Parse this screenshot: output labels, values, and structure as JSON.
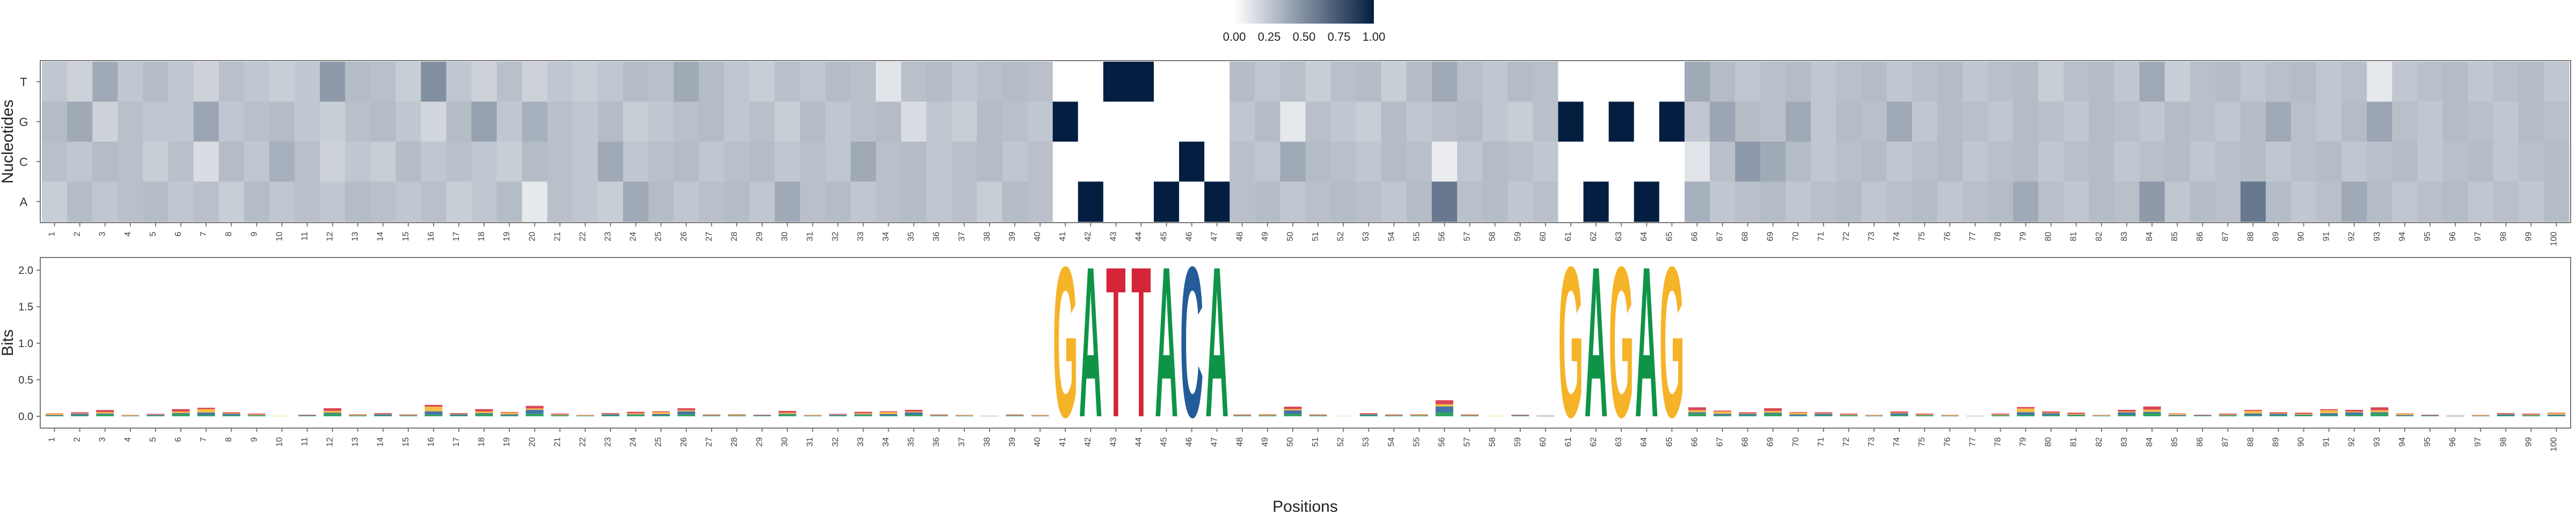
{
  "chart_data": [
    {
      "type": "heatmap",
      "title": "",
      "xlabel": "",
      "ylabel": "Nucleotides",
      "rows": [
        "T",
        "G",
        "C",
        "A"
      ],
      "columns": [
        "1",
        "2",
        "3",
        "4",
        "5",
        "6",
        "7",
        "8",
        "9",
        "10",
        "11",
        "12",
        "13",
        "14",
        "15",
        "16",
        "17",
        "18",
        "19",
        "20",
        "21",
        "22",
        "23",
        "24",
        "25",
        "26",
        "27",
        "28",
        "29",
        "30",
        "31",
        "32",
        "33",
        "34",
        "35",
        "36",
        "37",
        "38",
        "39",
        "40",
        "41",
        "42",
        "43",
        "44",
        "45",
        "46",
        "47",
        "48",
        "49",
        "50",
        "51",
        "52",
        "53",
        "54",
        "55",
        "56",
        "57",
        "58",
        "59",
        "60",
        "61",
        "62",
        "63",
        "64",
        "65",
        "66",
        "67",
        "68",
        "69",
        "70",
        "71",
        "72",
        "73",
        "74",
        "75",
        "76",
        "77",
        "78",
        "79",
        "80",
        "81",
        "82",
        "83",
        "84",
        "85",
        "86",
        "87",
        "88",
        "89",
        "90",
        "91",
        "92",
        "93",
        "94",
        "95",
        "96",
        "97",
        "98",
        "99",
        "100"
      ],
      "values": {
        "T": [
          0.25,
          0.2,
          0.38,
          0.25,
          0.3,
          0.25,
          0.2,
          0.28,
          0.25,
          0.22,
          0.25,
          0.45,
          0.3,
          0.28,
          0.22,
          0.5,
          0.25,
          0.2,
          0.28,
          0.2,
          0.25,
          0.22,
          0.25,
          0.3,
          0.28,
          0.38,
          0.3,
          0.25,
          0.22,
          0.28,
          0.25,
          0.3,
          0.28,
          0.12,
          0.28,
          0.3,
          0.25,
          0.28,
          0.3,
          0.28,
          0,
          0,
          1,
          1,
          0,
          0,
          0,
          0.3,
          0.25,
          0.28,
          0.22,
          0.28,
          0.3,
          0.22,
          0.3,
          0.38,
          0.28,
          0.25,
          0.3,
          0.28,
          0,
          0,
          0,
          0,
          0,
          0.38,
          0.3,
          0.25,
          0.28,
          0.3,
          0.25,
          0.28,
          0.3,
          0.25,
          0.28,
          0.3,
          0.25,
          0.28,
          0.3,
          0.22,
          0.28,
          0.3,
          0.25,
          0.38,
          0.22,
          0.28,
          0.3,
          0.25,
          0.28,
          0.3,
          0.25,
          0.28,
          0.1,
          0.25,
          0.28,
          0.3,
          0.25,
          0.28,
          0.3,
          0.25
        ],
        "G": [
          0.3,
          0.38,
          0.2,
          0.28,
          0.25,
          0.25,
          0.4,
          0.25,
          0.28,
          0.3,
          0.25,
          0.22,
          0.28,
          0.3,
          0.25,
          0.18,
          0.3,
          0.42,
          0.25,
          0.35,
          0.28,
          0.25,
          0.3,
          0.22,
          0.25,
          0.28,
          0.3,
          0.25,
          0.28,
          0.22,
          0.3,
          0.25,
          0.28,
          0.3,
          0.15,
          0.25,
          0.22,
          0.3,
          0.28,
          0.25,
          1,
          0,
          0,
          0,
          0,
          0,
          0,
          0.25,
          0.3,
          0.1,
          0.28,
          0.25,
          0.22,
          0.3,
          0.25,
          0.28,
          0.3,
          0.25,
          0.22,
          0.28,
          1,
          0,
          1,
          0,
          1,
          0.25,
          0.4,
          0.3,
          0.28,
          0.38,
          0.25,
          0.3,
          0.28,
          0.38,
          0.25,
          0.3,
          0.28,
          0.25,
          0.3,
          0.28,
          0.25,
          0.3,
          0.28,
          0.25,
          0.3,
          0.28,
          0.25,
          0.3,
          0.38,
          0.28,
          0.25,
          0.3,
          0.4,
          0.28,
          0.25,
          0.3,
          0.28,
          0.25,
          0.3,
          0.28
        ],
        "C": [
          0.28,
          0.25,
          0.3,
          0.28,
          0.22,
          0.28,
          0.15,
          0.3,
          0.25,
          0.35,
          0.28,
          0.2,
          0.25,
          0.22,
          0.3,
          0.25,
          0.28,
          0.25,
          0.22,
          0.3,
          0.28,
          0.25,
          0.38,
          0.25,
          0.28,
          0.3,
          0.25,
          0.28,
          0.3,
          0.25,
          0.28,
          0.25,
          0.38,
          0.28,
          0.3,
          0.25,
          0.28,
          0.3,
          0.25,
          0.28,
          0,
          0,
          0,
          0,
          0,
          1,
          0,
          0.28,
          0.25,
          0.38,
          0.3,
          0.28,
          0.25,
          0.3,
          0.28,
          0.08,
          0.25,
          0.3,
          0.28,
          0.25,
          0,
          0,
          0,
          0,
          0,
          0.12,
          0.28,
          0.45,
          0.38,
          0.3,
          0.25,
          0.28,
          0.3,
          0.25,
          0.28,
          0.3,
          0.25,
          0.28,
          0.3,
          0.25,
          0.28,
          0.3,
          0.25,
          0.28,
          0.3,
          0.25,
          0.28,
          0.3,
          0.25,
          0.28,
          0.3,
          0.25,
          0.28,
          0.3,
          0.25,
          0.28,
          0.3,
          0.25,
          0.28,
          0.3
        ],
        "A": [
          0.22,
          0.3,
          0.25,
          0.28,
          0.3,
          0.25,
          0.28,
          0.22,
          0.3,
          0.25,
          0.28,
          0.25,
          0.3,
          0.28,
          0.25,
          0.28,
          0.22,
          0.25,
          0.3,
          0.1,
          0.28,
          0.25,
          0.22,
          0.38,
          0.3,
          0.25,
          0.28,
          0.3,
          0.25,
          0.38,
          0.28,
          0.3,
          0.25,
          0.28,
          0.3,
          0.25,
          0.28,
          0.22,
          0.3,
          0.28,
          0,
          1,
          0,
          0,
          1,
          0,
          1,
          0.28,
          0.3,
          0.25,
          0.28,
          0.3,
          0.28,
          0.25,
          0.3,
          0.6,
          0.28,
          0.3,
          0.25,
          0.28,
          0,
          1,
          0,
          1,
          0,
          0.35,
          0.25,
          0.28,
          0.3,
          0.25,
          0.28,
          0.3,
          0.25,
          0.28,
          0.3,
          0.25,
          0.28,
          0.3,
          0.38,
          0.28,
          0.25,
          0.3,
          0.28,
          0.45,
          0.25,
          0.3,
          0.28,
          0.6,
          0.3,
          0.25,
          0.28,
          0.38,
          0.3,
          0.25,
          0.28,
          0.3,
          0.25,
          0.28,
          0.25,
          0.3
        ]
      },
      "colorbar": {
        "min": 0,
        "max": 1,
        "ticks": [
          "0.00",
          "0.25",
          "0.50",
          "0.75",
          "1.00"
        ],
        "color_low": "#ffffff",
        "color_high": "#041e42"
      }
    },
    {
      "type": "sequence-logo",
      "title": "",
      "xlabel": "Positions",
      "ylabel": "Bits",
      "ylim": [
        0,
        2.1
      ],
      "yticks": [
        "0.0",
        "0.5",
        "1.0",
        "1.5",
        "2.0"
      ],
      "x": [
        "1",
        "2",
        "3",
        "4",
        "5",
        "6",
        "7",
        "8",
        "9",
        "10",
        "11",
        "12",
        "13",
        "14",
        "15",
        "16",
        "17",
        "18",
        "19",
        "20",
        "21",
        "22",
        "23",
        "24",
        "25",
        "26",
        "27",
        "28",
        "29",
        "30",
        "31",
        "32",
        "33",
        "34",
        "35",
        "36",
        "37",
        "38",
        "39",
        "40",
        "41",
        "42",
        "43",
        "44",
        "45",
        "46",
        "47",
        "48",
        "49",
        "50",
        "51",
        "52",
        "53",
        "54",
        "55",
        "56",
        "57",
        "58",
        "59",
        "60",
        "61",
        "62",
        "63",
        "64",
        "65",
        "66",
        "67",
        "68",
        "69",
        "70",
        "71",
        "72",
        "73",
        "74",
        "75",
        "76",
        "77",
        "78",
        "79",
        "80",
        "81",
        "82",
        "83",
        "84",
        "85",
        "86",
        "87",
        "88",
        "89",
        "90",
        "91",
        "92",
        "93",
        "94",
        "95",
        "96",
        "97",
        "98",
        "99",
        "100"
      ],
      "conserved": [
        {
          "position": 41,
          "letter": "G",
          "bits": 2.0
        },
        {
          "position": 42,
          "letter": "A",
          "bits": 2.0
        },
        {
          "position": 43,
          "letter": "T",
          "bits": 2.0
        },
        {
          "position": 44,
          "letter": "T",
          "bits": 2.0
        },
        {
          "position": 45,
          "letter": "A",
          "bits": 2.0
        },
        {
          "position": 46,
          "letter": "C",
          "bits": 2.0
        },
        {
          "position": 47,
          "letter": "A",
          "bits": 2.0
        },
        {
          "position": 61,
          "letter": "G",
          "bits": 2.0
        },
        {
          "position": 62,
          "letter": "A",
          "bits": 2.0
        },
        {
          "position": 63,
          "letter": "G",
          "bits": 2.0
        },
        {
          "position": 64,
          "letter": "A",
          "bits": 2.0
        },
        {
          "position": 65,
          "letter": "G",
          "bits": 2.0
        }
      ],
      "background_bits": [
        0.04,
        0.05,
        0.07,
        0.02,
        0.03,
        0.08,
        0.12,
        0.05,
        0.03,
        0.01,
        0.02,
        0.09,
        0.03,
        0.04,
        0.02,
        0.16,
        0.04,
        0.08,
        0.06,
        0.13,
        0.03,
        0.02,
        0.04,
        0.05,
        0.07,
        0.1,
        0.02,
        0.03,
        0.02,
        0.06,
        0.02,
        0.03,
        0.05,
        0.07,
        0.08,
        0.02,
        0.02,
        0.01,
        0.02,
        0.02,
        0,
        0,
        0,
        0,
        0,
        0,
        0,
        0.02,
        0.03,
        0.12,
        0.02,
        0.01,
        0.04,
        0.02,
        0.03,
        0.2,
        0.02,
        0.01,
        0.02,
        0.01,
        0,
        0,
        0,
        0,
        0,
        0.1,
        0.08,
        0.05,
        0.09,
        0.06,
        0.05,
        0.03,
        0.02,
        0.06,
        0.03,
        0.02,
        0.01,
        0.03,
        0.13,
        0.06,
        0.04,
        0.02,
        0.08,
        0.11,
        0.04,
        0.02,
        0.03,
        0.09,
        0.05,
        0.04,
        0.1,
        0.08,
        0.1,
        0.04,
        0.02,
        0.01,
        0.02,
        0.04,
        0.03,
        0.05
      ],
      "letter_colors": {
        "A": "#0f9447",
        "C": "#235c99",
        "G": "#f5b328",
        "T": "#d42638"
      }
    }
  ]
}
